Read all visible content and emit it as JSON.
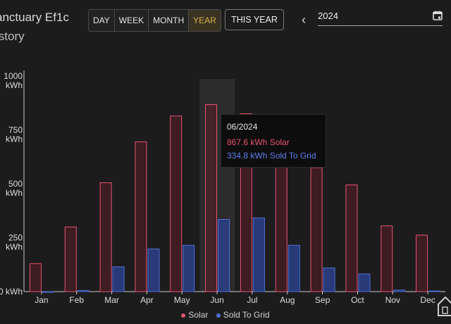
{
  "header": {
    "title": "anctuary Ef1c",
    "subtitle": "istory",
    "periods": [
      "DAY",
      "WEEK",
      "MONTH",
      "YEAR"
    ],
    "active_period": "YEAR",
    "this_year_label": "THIS YEAR",
    "date_value": "2024",
    "prev_icon": "chevron-left-icon",
    "calendar_icon": "calendar-icon"
  },
  "colors": {
    "solar": "#e8546f",
    "solar_fill": "#5a1e28",
    "grid": "#4f6fd8",
    "grid_fill": "#2b3f8a",
    "accent": "#d8b24a"
  },
  "chart_data": {
    "type": "bar",
    "categories": [
      "Jan",
      "Feb",
      "Mar",
      "Apr",
      "May",
      "Jun",
      "Jul",
      "Aug",
      "Sep",
      "Oct",
      "Nov",
      "Dec"
    ],
    "series": [
      {
        "name": "Solar",
        "values": [
          130,
          300,
          505,
          695,
          815,
          867.6,
          825,
          650,
          575,
          495,
          305,
          262
        ]
      },
      {
        "name": "Sold To Grid",
        "values": [
          0,
          5,
          115,
          198,
          215,
          334.8,
          342,
          215,
          110,
          82,
          7,
          3
        ]
      }
    ],
    "y_ticks": [
      {
        "value": 0,
        "label": "0 kWh"
      },
      {
        "value": 250,
        "label": "250 kWh"
      },
      {
        "value": 500,
        "label": "500 kWh"
      },
      {
        "value": 750,
        "label": "750 kWh"
      },
      {
        "value": 1000,
        "label": "1000 kWh"
      }
    ],
    "ylim": [
      0,
      1000
    ],
    "highlight_category": "Jun",
    "grid": false,
    "legend": "bottom"
  },
  "tooltip": {
    "title": "06/2024",
    "solar_line": "867.6 kWh Solar",
    "grid_line": "334.8 kWh Sold To Grid"
  },
  "legend": {
    "solar_label": "Solar",
    "grid_label": "Sold To Grid"
  },
  "logo_icon": "house-logo-icon"
}
